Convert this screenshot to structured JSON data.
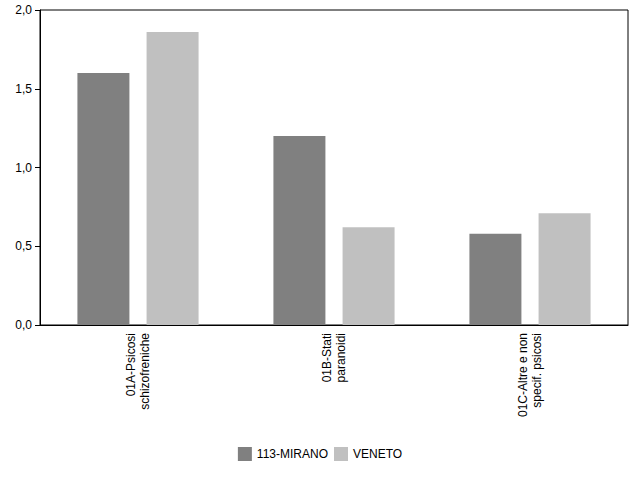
{
  "chart_data": {
    "type": "bar",
    "categories": [
      "01A-Psicosi\nschizofreniche",
      "01B-Stati\nparanoidi",
      "01C-Altre e non\nspecif. psicosi"
    ],
    "series": [
      {
        "name": "113-MIRANO",
        "color": "#808080",
        "values": [
          1.6,
          1.2,
          0.58
        ]
      },
      {
        "name": "VENETO",
        "color": "#c0c0c0",
        "values": [
          1.86,
          0.62,
          0.71
        ]
      }
    ],
    "ylim": [
      0,
      2.0
    ],
    "yticks": [
      {
        "value": 0,
        "label": "0,0"
      },
      {
        "value": 0.5,
        "label": "0,5"
      },
      {
        "value": 1.0,
        "label": "1,0"
      },
      {
        "value": 1.5,
        "label": "1,5"
      },
      {
        "value": 2.0,
        "label": "2,0"
      }
    ],
    "grid": false,
    "legend": "bottom"
  }
}
